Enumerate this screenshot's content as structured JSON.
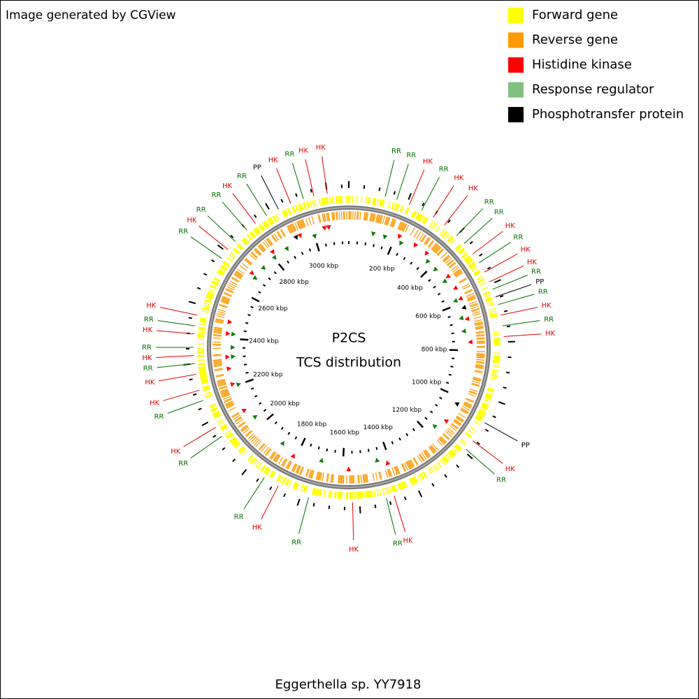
{
  "header": {
    "title": "Image generated by CGView"
  },
  "legend": [
    {
      "label": "Forward gene",
      "color": "#ffff00"
    },
    {
      "label": "Reverse gene",
      "color": "#ff9900"
    },
    {
      "label": "Histidine kinase",
      "color": "#ff0000"
    },
    {
      "label": "Response regulator",
      "color": "#80c080"
    },
    {
      "label": "Phosphotransfer protein",
      "color": "#000000"
    }
  ],
  "center": {
    "title": "P2CS",
    "subtitle": "TCS distribution"
  },
  "footer": "Eggerthella sp. YY7918",
  "scale_labels": [
    "200 kbp",
    "400 kbp",
    "600 kbp",
    "800 kbp",
    "1000 kbp",
    "1200 kbp",
    "1400 kbp",
    "1600 kbp",
    "1800 kbp",
    "2000 kbp",
    "2200 kbp",
    "2400 kbp",
    "2600 kbp",
    "2800 kbp",
    "3000 kbp"
  ],
  "callouts": [
    "RR",
    "RR",
    "HK",
    "RR",
    "HK",
    "HK",
    "RR",
    "RR",
    "HK",
    "RR",
    "HK",
    "HK",
    "RR",
    "PP",
    "RR",
    "HK",
    "RR",
    "HK",
    "PP",
    "HK",
    "RR",
    "HK",
    "RR",
    "HK",
    "RR",
    "HK",
    "RR",
    "RR",
    "HK",
    "RR",
    "HK",
    "HK",
    "RR",
    "HK",
    "RR",
    "HK",
    "RR",
    "HK",
    "RR",
    "HK",
    "RR",
    "RR",
    "HK",
    "RR",
    "PP",
    "HK",
    "RR",
    "HK",
    "HK"
  ]
}
